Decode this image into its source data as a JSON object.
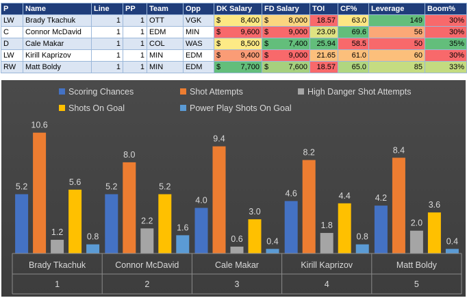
{
  "table": {
    "headers": [
      "P",
      "Name",
      "Line",
      "PP",
      "Team",
      "Opp",
      "DK Salary",
      "FD Salary",
      "TOI",
      "CF%",
      "Leverage",
      "Boom%"
    ],
    "rows": [
      {
        "pos": "LW",
        "name": "Brady Tkachuk",
        "line": "1",
        "pp": "1",
        "team": "OTT",
        "opp": "VGK",
        "dk": "8,400",
        "fd": "8,000",
        "toi": "18.57",
        "cf": "63.0",
        "lev": "149",
        "boom": "30%"
      },
      {
        "pos": "C",
        "name": "Connor McDavid",
        "line": "1",
        "pp": "1",
        "team": "EDM",
        "opp": "MIN",
        "dk": "9,600",
        "fd": "9,000",
        "toi": "23.09",
        "cf": "69.6",
        "lev": "56",
        "boom": "30%"
      },
      {
        "pos": "D",
        "name": "Cale Makar",
        "line": "1",
        "pp": "1",
        "team": "COL",
        "opp": "WAS",
        "dk": "8,500",
        "fd": "7,400",
        "toi": "25.94",
        "cf": "58.5",
        "lev": "50",
        "boom": "35%"
      },
      {
        "pos": "LW",
        "name": "Kirill Kaprizov",
        "line": "1",
        "pp": "1",
        "team": "MIN",
        "opp": "EDM",
        "dk": "9,400",
        "fd": "9,000",
        "toi": "21.65",
        "cf": "61.0",
        "lev": "60",
        "boom": "30%"
      },
      {
        "pos": "RW",
        "name": "Matt Boldy",
        "line": "1",
        "pp": "1",
        "team": "MIN",
        "opp": "EDM",
        "dk": "7,700",
        "fd": "7,600",
        "toi": "18.57",
        "cf": "65.0",
        "lev": "85",
        "boom": "33%"
      }
    ],
    "currency": "$",
    "cell_colors": {
      "dk": [
        "#fde883",
        "#f8696b",
        "#fdea86",
        "#fa9c76",
        "#63be7b"
      ],
      "fd": [
        "#fbd57f",
        "#f8696b",
        "#63be7b",
        "#f8696b",
        "#a6d07e"
      ],
      "toi": [
        "#f8696b",
        "#dfe382",
        "#63be7b",
        "#fcc07c",
        "#f8696b"
      ],
      "cf": [
        "#fee683",
        "#63be7b",
        "#f8696b",
        "#fcbf7b",
        "#b0d680"
      ],
      "lev": [
        "#63be7b",
        "#fba877",
        "#f8696b",
        "#fcbf7b",
        "#c5dc81"
      ],
      "boom": [
        "#f8696b",
        "#f8696b",
        "#63be7b",
        "#f8696b",
        "#c3db80"
      ]
    }
  },
  "chart_data": {
    "type": "bar",
    "categories": [
      "Brady Tkachuk",
      "Connor McDavid",
      "Cale Makar",
      "Kirill Kaprizov",
      "Matt Boldy"
    ],
    "category_numbers": [
      "1",
      "2",
      "3",
      "4",
      "5"
    ],
    "series": [
      {
        "name": "Scoring Chances",
        "values": [
          5.2,
          5.2,
          4.0,
          4.6,
          4.2
        ],
        "color": "#4472c4"
      },
      {
        "name": "Shot Attempts",
        "values": [
          10.6,
          8.0,
          9.4,
          8.2,
          8.4
        ],
        "color": "#ed7d31"
      },
      {
        "name": "High Danger Shot Attempts",
        "values": [
          1.2,
          2.2,
          0.6,
          1.8,
          2.0
        ],
        "color": "#a5a5a5"
      },
      {
        "name": "Shots On Goal",
        "values": [
          5.6,
          5.2,
          3.0,
          4.4,
          3.6
        ],
        "color": "#ffc000"
      },
      {
        "name": "Power Play Shots On Goal",
        "values": [
          0.8,
          1.6,
          0.4,
          0.8,
          0.4
        ],
        "color": "#5b9bd5"
      }
    ],
    "ylim": [
      0,
      11
    ],
    "legend": "top",
    "grid": false,
    "xlabel": "",
    "ylabel": ""
  }
}
